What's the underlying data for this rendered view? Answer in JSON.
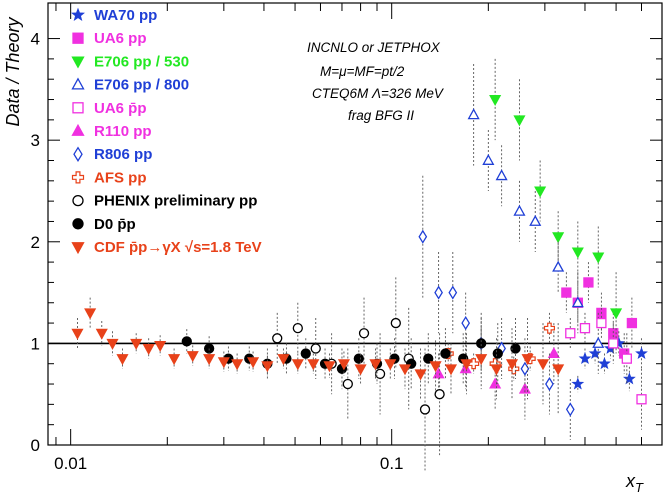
{
  "chart_data": {
    "type": "scatter",
    "title": "",
    "xlabel": "x",
    "xlabel_sub": "T",
    "ylabel": "Data / Theory",
    "xscale": "log",
    "xlim": [
      0.0085,
      0.7
    ],
    "ylim": [
      0,
      4.35
    ],
    "reference_line": 1,
    "grid": false,
    "legend_placement": "top-left",
    "x_tick_labels": [
      {
        "value": 0.01,
        "label": "0.01"
      },
      {
        "value": 0.1,
        "label": "0.1"
      }
    ],
    "y_tick_labels": [
      {
        "value": 0,
        "label": "0"
      },
      {
        "value": 1,
        "label": "1"
      },
      {
        "value": 2,
        "label": "2"
      },
      {
        "value": 3,
        "label": "3"
      },
      {
        "value": 4,
        "label": "4"
      }
    ],
    "annotations": [
      "INCNLO or JETPHOX",
      "M=μ=MF=pt/2",
      "CTEQ6M Λ=326 MeV",
      "frag BFG II"
    ],
    "series": [
      {
        "name": "WA70 pp",
        "marker": "star",
        "color": "#1f3fd6",
        "filled": true,
        "points": [
          [
            0.38,
            0.6,
            0.08
          ],
          [
            0.4,
            0.85,
            0.1
          ],
          [
            0.43,
            0.9,
            0.1
          ],
          [
            0.46,
            0.8,
            0.1
          ],
          [
            0.48,
            0.95,
            0.1
          ],
          [
            0.51,
            1.0,
            0.12
          ],
          [
            0.55,
            0.65,
            0.12
          ],
          [
            0.6,
            0.9,
            0.15
          ]
        ]
      },
      {
        "name": "UA6 pp",
        "marker": "square",
        "color": "#f030e0",
        "filled": true,
        "points": [
          [
            0.35,
            1.5,
            0.2
          ],
          [
            0.38,
            1.4,
            0.2
          ],
          [
            0.41,
            1.6,
            0.2
          ],
          [
            0.45,
            1.3,
            0.2
          ],
          [
            0.49,
            1.1,
            0.2
          ],
          [
            0.53,
            0.9,
            0.2
          ],
          [
            0.56,
            1.2,
            0.25
          ]
        ]
      },
      {
        "name": "E706 pp / 530",
        "marker": "triangle-down",
        "color": "#22e822",
        "filled": true,
        "points": [
          [
            0.21,
            3.4,
            0.4
          ],
          [
            0.25,
            3.2,
            0.4
          ],
          [
            0.29,
            2.5,
            0.3
          ],
          [
            0.33,
            2.05,
            0.25
          ],
          [
            0.38,
            1.9,
            0.3
          ],
          [
            0.44,
            1.85,
            0.3
          ],
          [
            0.5,
            1.3,
            0.4
          ]
        ]
      },
      {
        "name": "E706 pp / 800",
        "marker": "triangle-up",
        "color": "#1f3fd6",
        "filled": false,
        "points": [
          [
            0.18,
            3.25,
            0.5
          ],
          [
            0.2,
            2.8,
            0.3
          ],
          [
            0.22,
            2.65,
            0.3
          ],
          [
            0.25,
            2.3,
            0.3
          ],
          [
            0.28,
            2.2,
            0.3
          ],
          [
            0.33,
            1.75,
            0.25
          ],
          [
            0.38,
            1.4,
            0.3
          ],
          [
            0.44,
            1.0,
            0.3
          ]
        ]
      },
      {
        "name": "UA6 p̄p",
        "marker": "square",
        "color": "#f030e0",
        "filled": false,
        "points": [
          [
            0.36,
            1.1,
            0.15
          ],
          [
            0.4,
            1.15,
            0.15
          ],
          [
            0.45,
            1.2,
            0.15
          ],
          [
            0.49,
            1.0,
            0.2
          ],
          [
            0.54,
            0.85,
            0.25
          ],
          [
            0.6,
            0.45,
            0.3
          ]
        ]
      },
      {
        "name": "R110 pp",
        "marker": "triangle-up",
        "color": "#f030e0",
        "filled": true,
        "points": [
          [
            0.14,
            0.7,
            0.2
          ],
          [
            0.17,
            0.75,
            0.2
          ],
          [
            0.21,
            0.6,
            0.25
          ],
          [
            0.26,
            0.55,
            0.3
          ],
          [
            0.32,
            0.9,
            0.3
          ]
        ]
      },
      {
        "name": "R806 pp",
        "marker": "diamond",
        "color": "#1f3fd6",
        "filled": false,
        "points": [
          [
            0.125,
            2.05,
            0.6
          ],
          [
            0.14,
            1.5,
            0.4
          ],
          [
            0.155,
            1.5,
            0.4
          ],
          [
            0.17,
            1.2,
            0.3
          ],
          [
            0.19,
            1.0,
            0.3
          ],
          [
            0.22,
            0.95,
            0.3
          ],
          [
            0.26,
            0.75,
            0.3
          ],
          [
            0.31,
            0.6,
            0.3
          ],
          [
            0.36,
            0.35,
            0.3
          ]
        ]
      },
      {
        "name": "AFS pp",
        "marker": "cross",
        "color": "#e8421a",
        "filled": false,
        "points": [
          [
            0.15,
            0.9,
            0.1
          ],
          [
            0.18,
            0.8,
            0.1
          ],
          [
            0.21,
            0.8,
            0.1
          ],
          [
            0.24,
            0.75,
            0.12
          ],
          [
            0.27,
            0.85,
            0.12
          ],
          [
            0.31,
            1.15,
            0.15
          ]
        ]
      },
      {
        "name": "PHENIX preliminary pp",
        "marker": "circle",
        "color": "#000000",
        "filled": false,
        "points": [
          [
            0.044,
            1.05,
            0.25
          ],
          [
            0.051,
            1.15,
            0.25
          ],
          [
            0.058,
            0.95,
            0.3
          ],
          [
            0.065,
            0.8,
            0.3
          ],
          [
            0.073,
            0.6,
            0.35
          ],
          [
            0.082,
            1.1,
            0.35
          ],
          [
            0.092,
            0.7,
            0.4
          ],
          [
            0.103,
            1.2,
            0.45
          ],
          [
            0.113,
            0.85,
            0.5
          ],
          [
            0.127,
            0.35,
            0.6
          ],
          [
            0.141,
            0.5,
            0.6
          ]
        ]
      },
      {
        "name": "D0 p̄p",
        "marker": "circle",
        "color": "#000000",
        "filled": true,
        "points": [
          [
            0.023,
            1.02,
            0.12
          ],
          [
            0.027,
            0.95,
            0.12
          ],
          [
            0.031,
            0.85,
            0.12
          ],
          [
            0.036,
            0.85,
            0.12
          ],
          [
            0.041,
            0.8,
            0.15
          ],
          [
            0.047,
            0.85,
            0.15
          ],
          [
            0.054,
            0.9,
            0.15
          ],
          [
            0.062,
            0.8,
            0.15
          ],
          [
            0.07,
            0.75,
            0.2
          ],
          [
            0.079,
            0.85,
            0.2
          ],
          [
            0.09,
            0.8,
            0.2
          ],
          [
            0.102,
            0.85,
            0.2
          ],
          [
            0.115,
            0.8,
            0.25
          ],
          [
            0.13,
            0.85,
            0.25
          ],
          [
            0.147,
            0.9,
            0.25
          ],
          [
            0.167,
            0.85,
            0.25
          ],
          [
            0.19,
            1.0,
            0.25
          ],
          [
            0.214,
            0.9,
            0.3
          ],
          [
            0.243,
            0.95,
            0.3
          ]
        ]
      },
      {
        "name": "CDF p̄p→γX √s=1.8 TeV",
        "marker": "triangle-down",
        "color": "#e8421a",
        "filled": true,
        "points": [
          [
            0.0105,
            1.1,
            0.15
          ],
          [
            0.0115,
            1.3,
            0.15
          ],
          [
            0.0125,
            1.1,
            0.12
          ],
          [
            0.0135,
            1.0,
            0.12
          ],
          [
            0.0145,
            0.85,
            0.1
          ],
          [
            0.016,
            1.0,
            0.1
          ],
          [
            0.0175,
            0.95,
            0.1
          ],
          [
            0.019,
            0.98,
            0.1
          ],
          [
            0.021,
            0.85,
            0.1
          ],
          [
            0.024,
            0.88,
            0.1
          ],
          [
            0.027,
            0.85,
            0.1
          ],
          [
            0.03,
            0.82,
            0.1
          ],
          [
            0.033,
            0.8,
            0.1
          ],
          [
            0.037,
            0.82,
            0.1
          ],
          [
            0.041,
            0.78,
            0.1
          ],
          [
            0.046,
            0.85,
            0.1
          ],
          [
            0.051,
            0.8,
            0.1
          ],
          [
            0.057,
            0.8,
            0.1
          ],
          [
            0.064,
            0.78,
            0.12
          ],
          [
            0.071,
            0.8,
            0.12
          ],
          [
            0.08,
            0.75,
            0.15
          ],
          [
            0.089,
            0.8,
            0.15
          ],
          [
            0.099,
            0.8,
            0.15
          ],
          [
            0.11,
            0.75,
            0.2
          ],
          [
            0.123,
            0.7,
            0.25
          ],
          [
            0.137,
            0.78,
            0.25
          ],
          [
            0.153,
            0.75,
            0.25
          ],
          [
            0.171,
            0.8,
            0.3
          ],
          [
            0.19,
            0.85,
            0.3
          ],
          [
            0.212,
            0.75,
            0.3
          ],
          [
            0.237,
            0.8,
            0.35
          ],
          [
            0.265,
            0.85,
            0.4
          ],
          [
            0.296,
            0.8,
            0.4
          ],
          [
            0.33,
            0.75,
            0.45
          ]
        ]
      }
    ]
  }
}
